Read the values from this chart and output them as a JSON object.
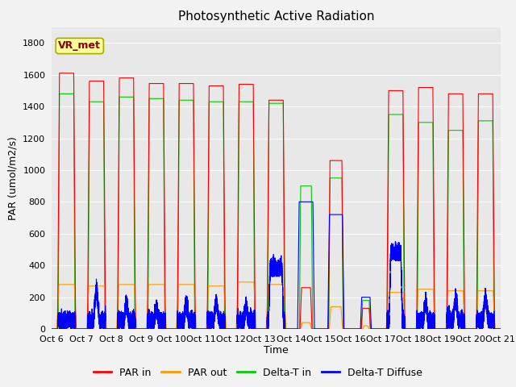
{
  "title": "Photosynthetic Active Radiation",
  "ylabel": "PAR (umol/m2/s)",
  "xlabel": "Time",
  "legend_label": "VR_met",
  "series_labels": [
    "PAR in",
    "PAR out",
    "Delta-T in",
    "Delta-T Diffuse"
  ],
  "series_colors": [
    "#ff0000",
    "#ff9900",
    "#00cc00",
    "#0000ff"
  ],
  "ylim": [
    0,
    1900
  ],
  "yticks": [
    0,
    200,
    400,
    600,
    800,
    1000,
    1200,
    1400,
    1600,
    1800
  ],
  "xtick_labels": [
    "Oct 6",
    "Oct 7",
    "Oct 8",
    "Oct 9",
    "Oct 10",
    "Oct 11",
    "Oct 12",
    "Oct 13",
    "Oct 14",
    "Oct 15",
    "Oct 16",
    "Oct 17",
    "Oct 18",
    "Oct 19",
    "Oct 20",
    "Oct 21"
  ],
  "plot_bg": "#e8e8e8",
  "fig_bg": "#f2f2f2",
  "grid_color": "#ffffff",
  "box_fill": "#ffff99",
  "box_edge": "#aaaa00",
  "title_fontsize": 11,
  "axis_label_fontsize": 9,
  "tick_fontsize": 8,
  "legend_fontsize": 9
}
